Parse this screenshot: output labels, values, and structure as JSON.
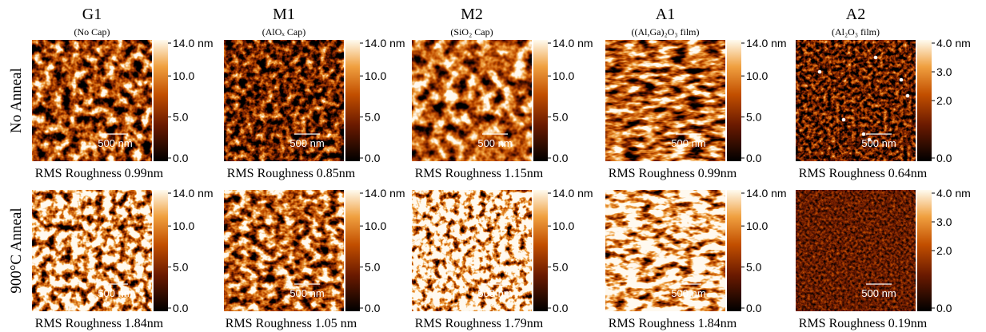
{
  "columns": [
    {
      "title": "G1",
      "subtitle": "(No Cap)"
    },
    {
      "title": "M1",
      "subtitle": "(AlOₓ Cap)"
    },
    {
      "title": "M2",
      "subtitle": "(SiO₂ Cap)"
    },
    {
      "title": "A1",
      "subtitle": "((Al,Ga)₂O₃ film)"
    },
    {
      "title": "A2",
      "subtitle": "(Al₂O₃  film)"
    }
  ],
  "rows": [
    {
      "label": "No Anneal",
      "panels": [
        {
          "roughness": "RMS Roughness 0.99nm",
          "scale_bar": "500 nm",
          "colorbar": [
            {
              "value": 14,
              "label": "14.0 nm"
            },
            {
              "value": 10,
              "label": "10.0"
            },
            {
              "value": 5,
              "label": "5.0"
            },
            {
              "value": 0,
              "label": "0.0"
            }
          ]
        },
        {
          "roughness": "RMS Roughness 0.85nm",
          "scale_bar": "500 nm",
          "colorbar": [
            {
              "value": 14,
              "label": "14.0 nm"
            },
            {
              "value": 10,
              "label": "10.0"
            },
            {
              "value": 5,
              "label": "5.0"
            },
            {
              "value": 0,
              "label": "0.0"
            }
          ]
        },
        {
          "roughness": "RMS Roughness 1.15nm",
          "scale_bar": "500 nm",
          "colorbar": [
            {
              "value": 14,
              "label": "14.0 nm"
            },
            {
              "value": 10,
              "label": "10.0"
            },
            {
              "value": 5,
              "label": "5.0"
            },
            {
              "value": 0,
              "label": "0.0"
            }
          ]
        },
        {
          "roughness": "RMS Roughness 0.99nm",
          "scale_bar": "500 nm",
          "colorbar": [
            {
              "value": 14,
              "label": "14.0 nm"
            },
            {
              "value": 10,
              "label": "10.0"
            },
            {
              "value": 5,
              "label": "5.0"
            },
            {
              "value": 0,
              "label": "0.0"
            }
          ]
        },
        {
          "roughness": "RMS Roughness 0.64nm",
          "scale_bar": "500 nm",
          "colorbar": [
            {
              "value": 4,
              "label": "4.0 nm"
            },
            {
              "value": 3,
              "label": "3.0"
            },
            {
              "value": 2,
              "label": "2.0"
            },
            {
              "value": 0,
              "label": "0.0"
            }
          ]
        }
      ]
    },
    {
      "label": "900°C Anneal",
      "panels": [
        {
          "roughness": "RMS Roughness 1.84nm",
          "scale_bar": "500 nm",
          "colorbar": [
            {
              "value": 14,
              "label": "14.0 nm"
            },
            {
              "value": 10,
              "label": "10.0"
            },
            {
              "value": 5,
              "label": "5.0"
            },
            {
              "value": 0,
              "label": "0.0"
            }
          ]
        },
        {
          "roughness": "RMS Roughness 1.05 nm",
          "scale_bar": "500 nm",
          "colorbar": [
            {
              "value": 14,
              "label": "14.0 nm"
            },
            {
              "value": 10,
              "label": "10.0"
            },
            {
              "value": 5,
              "label": "5.0"
            },
            {
              "value": 0,
              "label": "0.0"
            }
          ]
        },
        {
          "roughness": "RMS Roughness 1.79nm",
          "scale_bar": "500 nm",
          "colorbar": [
            {
              "value": 14,
              "label": "14.0 nm"
            },
            {
              "value": 10,
              "label": "10.0"
            },
            {
              "value": 5,
              "label": "5.0"
            },
            {
              "value": 0,
              "label": "0.0"
            }
          ]
        },
        {
          "roughness": "RMS Roughness 1.84nm",
          "scale_bar": "500 nm",
          "colorbar": [
            {
              "value": 14,
              "label": "14.0 nm"
            },
            {
              "value": 10,
              "label": "10.0"
            },
            {
              "value": 5,
              "label": "5.0"
            },
            {
              "value": 0,
              "label": "0.0"
            }
          ]
        },
        {
          "roughness": "RMS Roughness 0.19nm",
          "scale_bar": "500 nm",
          "colorbar": [
            {
              "value": 4,
              "label": "4.0 nm"
            },
            {
              "value": 3,
              "label": "3.0"
            },
            {
              "value": 2,
              "label": "2.0"
            },
            {
              "value": 0,
              "label": "0.0"
            }
          ]
        }
      ]
    }
  ]
}
